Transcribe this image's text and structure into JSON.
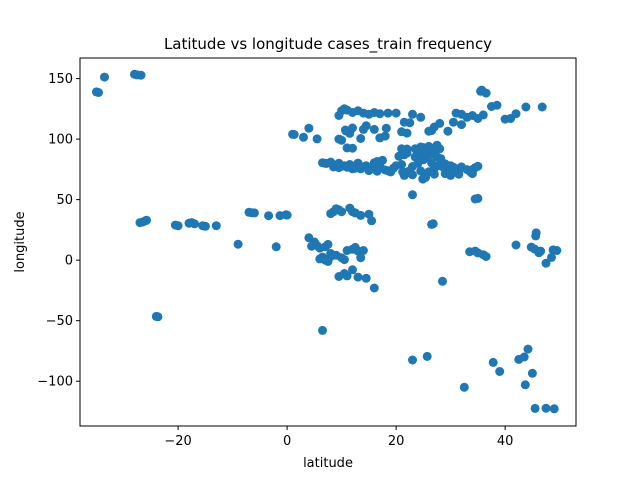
{
  "chart_data": {
    "type": "scatter",
    "title": "Latitude vs longitude cases_train frequency",
    "xlabel": "latitude",
    "ylabel": "longitude",
    "xlim": [
      -38,
      53
    ],
    "ylim": [
      -137,
      167
    ],
    "xticks": [
      -20,
      0,
      20,
      40
    ],
    "yticks": [
      -100,
      -50,
      0,
      50,
      100,
      150
    ],
    "grid": false,
    "legend": "none",
    "point_color": "#1f77b4",
    "points": [
      [
        -35,
        139
      ],
      [
        -34.6,
        138.5
      ],
      [
        -33.5,
        151.2
      ],
      [
        -28,
        153.5
      ],
      [
        -27.5,
        153
      ],
      [
        -26.8,
        152.8
      ],
      [
        -27,
        31
      ],
      [
        -26.5,
        31.5
      ],
      [
        -26,
        32.5
      ],
      [
        -25.8,
        33
      ],
      [
        -20.5,
        29
      ],
      [
        -20,
        28.5
      ],
      [
        -18,
        30.5
      ],
      [
        -17.5,
        31
      ],
      [
        -17,
        30
      ],
      [
        -15.5,
        28.5
      ],
      [
        -15,
        28
      ],
      [
        -13,
        28.5
      ],
      [
        -24,
        -46.5
      ],
      [
        -23.7,
        -46.8
      ],
      [
        -9,
        13.2
      ],
      [
        -6.5,
        39.2
      ],
      [
        -6,
        39
      ],
      [
        -7,
        39.5
      ],
      [
        -3.4,
        36.7
      ],
      [
        -1.3,
        36.8
      ],
      [
        -0.2,
        37.5
      ],
      [
        0,
        37.2
      ],
      [
        -2,
        11
      ],
      [
        1,
        104
      ],
      [
        1.3,
        103.8
      ],
      [
        3,
        101.5
      ],
      [
        4,
        109
      ],
      [
        6.5,
        -58
      ],
      [
        23,
        -82.5
      ],
      [
        25.7,
        -79.5
      ],
      [
        32.5,
        -105
      ],
      [
        28.5,
        -17.5
      ],
      [
        37.8,
        -84.5
      ],
      [
        39,
        -92
      ],
      [
        42.5,
        -82
      ],
      [
        43.5,
        -80
      ],
      [
        44.2,
        -73.5
      ],
      [
        43.7,
        -103
      ],
      [
        45,
        -93.5
      ],
      [
        45.5,
        -122.5
      ],
      [
        47.5,
        -122.3
      ],
      [
        49,
        -122.8
      ],
      [
        33.5,
        7
      ],
      [
        35,
        6
      ],
      [
        36,
        4.5
      ],
      [
        36.5,
        3
      ],
      [
        34.5,
        7.5
      ],
      [
        42,
        12.5
      ],
      [
        44.8,
        10.8
      ],
      [
        45.4,
        9.2
      ],
      [
        45.6,
        20
      ],
      [
        45.7,
        22.5
      ],
      [
        46.2,
        6.2
      ],
      [
        46.5,
        7.5
      ],
      [
        47.5,
        -2.5
      ],
      [
        48.5,
        2.3
      ],
      [
        48.8,
        8.5
      ],
      [
        49.5,
        8
      ],
      [
        34.5,
        50.5
      ],
      [
        35,
        51
      ],
      [
        26.5,
        29.5
      ],
      [
        26.8,
        30
      ],
      [
        23,
        54
      ],
      [
        4,
        18.5
      ],
      [
        5,
        15
      ],
      [
        4.5,
        11.5
      ],
      [
        5.5,
        12
      ],
      [
        6,
        10
      ],
      [
        7,
        11
      ],
      [
        7.5,
        13
      ],
      [
        8,
        5.5
      ],
      [
        8,
        3.5
      ],
      [
        6.5,
        2.5
      ],
      [
        6,
        1
      ],
      [
        7,
        0
      ],
      [
        7.5,
        -1
      ],
      [
        8,
        3
      ],
      [
        9,
        4
      ],
      [
        10,
        2
      ],
      [
        11,
        8
      ],
      [
        12,
        9
      ],
      [
        12.5,
        10.5
      ],
      [
        13,
        7.5
      ],
      [
        13.5,
        2
      ],
      [
        14,
        8
      ],
      [
        10.5,
        0.5
      ],
      [
        9.5,
        -13.5
      ],
      [
        10.5,
        -11
      ],
      [
        11,
        -13
      ],
      [
        12,
        -8
      ],
      [
        13,
        -14
      ],
      [
        14.5,
        -15
      ],
      [
        16,
        -23
      ],
      [
        8,
        38.5
      ],
      [
        8.5,
        40
      ],
      [
        9,
        42.5
      ],
      [
        9.5,
        41.5
      ],
      [
        10,
        40
      ],
      [
        11.5,
        43
      ],
      [
        12,
        40
      ],
      [
        12.5,
        39
      ],
      [
        15,
        38
      ],
      [
        15.5,
        32.5
      ],
      [
        13.5,
        37
      ],
      [
        9.5,
        119.5
      ],
      [
        10,
        123.5
      ],
      [
        10.5,
        125
      ],
      [
        11,
        124
      ],
      [
        12,
        122
      ],
      [
        13,
        123.5
      ],
      [
        14,
        121.5
      ],
      [
        15,
        120.5
      ],
      [
        16,
        122
      ],
      [
        17,
        121
      ],
      [
        18.5,
        121.5
      ],
      [
        20,
        121.5
      ],
      [
        21.5,
        114
      ],
      [
        22.5,
        113.5
      ],
      [
        22,
        105
      ],
      [
        21,
        106
      ],
      [
        23,
        120.5
      ],
      [
        24.5,
        118
      ],
      [
        26,
        106.5
      ],
      [
        26.5,
        107
      ],
      [
        27,
        110
      ],
      [
        30.5,
        114
      ],
      [
        31,
        121.5
      ],
      [
        32,
        120.5
      ],
      [
        33,
        118
      ],
      [
        34,
        119.5
      ],
      [
        35,
        117
      ],
      [
        36,
        120
      ],
      [
        35.5,
        139.5
      ],
      [
        35.7,
        140.5
      ],
      [
        36.5,
        138
      ],
      [
        37.5,
        126.9
      ],
      [
        38.5,
        128
      ],
      [
        40,
        116.5
      ],
      [
        41,
        117
      ],
      [
        42,
        121
      ],
      [
        43.8,
        126.5
      ],
      [
        46.8,
        126.5
      ],
      [
        32,
        112
      ],
      [
        29.5,
        106.5
      ],
      [
        28,
        113
      ],
      [
        18,
        102.5
      ],
      [
        17,
        101
      ],
      [
        16,
        108
      ],
      [
        14,
        108
      ],
      [
        13.5,
        100.5
      ],
      [
        11.5,
        104.8
      ],
      [
        10.8,
        106.7
      ],
      [
        12,
        109.2
      ],
      [
        11,
        92.7
      ],
      [
        12,
        92.5
      ],
      [
        10.7,
        107.5
      ],
      [
        14.5,
        111
      ],
      [
        18.2,
        109
      ],
      [
        10,
        99
      ],
      [
        5.5,
        100.2
      ],
      [
        9.5,
        100
      ],
      [
        8.5,
        77
      ],
      [
        9,
        78.5
      ],
      [
        9.5,
        76.5
      ],
      [
        10,
        77.5
      ],
      [
        10.5,
        78
      ],
      [
        11,
        76.8
      ],
      [
        11.5,
        79
      ],
      [
        12,
        77.6
      ],
      [
        12.5,
        76
      ],
      [
        13,
        80.2
      ],
      [
        13.5,
        75.5
      ],
      [
        14,
        77
      ],
      [
        14.5,
        78
      ],
      [
        15,
        74
      ],
      [
        15.5,
        76.5
      ],
      [
        16,
        80.5
      ],
      [
        16.5,
        81.5
      ],
      [
        17,
        78.5
      ],
      [
        17.5,
        82.5
      ],
      [
        18,
        74.5
      ],
      [
        18.5,
        73.8
      ],
      [
        19,
        72.9
      ],
      [
        19.5,
        76
      ],
      [
        20,
        78
      ],
      [
        20.5,
        85.8
      ],
      [
        21,
        79
      ],
      [
        21.5,
        87
      ],
      [
        22,
        88.4
      ],
      [
        22.5,
        72.5
      ],
      [
        23,
        77.4
      ],
      [
        23.5,
        85.3
      ],
      [
        24,
        80
      ],
      [
        24.5,
        86
      ],
      [
        25,
        82.9
      ],
      [
        25.5,
        85.1
      ],
      [
        26,
        91.7
      ],
      [
        26.5,
        80.3
      ],
      [
        27,
        75.8
      ],
      [
        27.5,
        77.7
      ],
      [
        28,
        84
      ],
      [
        28.5,
        77.2
      ],
      [
        29,
        79.5
      ],
      [
        29.5,
        76
      ],
      [
        30,
        78
      ],
      [
        30.5,
        76.8
      ],
      [
        31,
        75.5
      ],
      [
        31.5,
        74.3
      ],
      [
        32,
        77
      ],
      [
        33,
        74.8
      ],
      [
        34,
        74.8
      ],
      [
        34.5,
        76.5
      ],
      [
        35,
        77.5
      ],
      [
        24,
        90.4
      ],
      [
        23.8,
        91
      ],
      [
        26,
        88
      ],
      [
        27,
        88.6
      ],
      [
        27.5,
        95
      ],
      [
        26,
        94
      ],
      [
        25,
        93
      ],
      [
        23.5,
        92
      ],
      [
        22,
        91.8
      ],
      [
        21,
        92
      ],
      [
        25.5,
        90
      ],
      [
        27,
        89
      ],
      [
        28,
        92
      ],
      [
        24.5,
        93.5
      ],
      [
        26.5,
        92.5
      ],
      [
        27.5,
        85.3
      ],
      [
        28.2,
        83.9
      ],
      [
        26.5,
        87.5
      ],
      [
        12,
        75.5
      ],
      [
        7,
        80
      ],
      [
        6.5,
        80.5
      ],
      [
        8,
        81
      ],
      [
        9.5,
        80
      ],
      [
        7.2,
        79.9
      ],
      [
        16.5,
        73.5
      ],
      [
        21.5,
        70
      ],
      [
        23,
        70.5
      ],
      [
        24.5,
        73.7
      ],
      [
        26,
        73
      ],
      [
        27,
        71
      ],
      [
        29,
        71.5
      ],
      [
        30,
        70
      ],
      [
        31.5,
        71
      ],
      [
        33.6,
        73
      ],
      [
        34,
        71.5
      ],
      [
        24.9,
        67
      ],
      [
        25.4,
        68.4
      ],
      [
        22.2,
        73.2
      ],
      [
        21.2,
        72.8
      ]
    ]
  }
}
